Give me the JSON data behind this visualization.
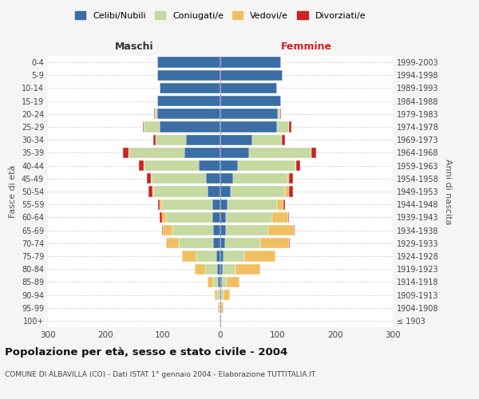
{
  "age_groups": [
    "100+",
    "95-99",
    "90-94",
    "85-89",
    "80-84",
    "75-79",
    "70-74",
    "65-69",
    "60-64",
    "55-59",
    "50-54",
    "45-49",
    "40-44",
    "35-39",
    "30-34",
    "25-29",
    "20-24",
    "15-19",
    "10-14",
    "5-9",
    "0-4"
  ],
  "birth_years": [
    "≤ 1903",
    "1904-1908",
    "1909-1913",
    "1914-1918",
    "1919-1923",
    "1924-1928",
    "1929-1933",
    "1934-1938",
    "1939-1943",
    "1944-1948",
    "1949-1953",
    "1954-1958",
    "1959-1963",
    "1964-1968",
    "1969-1973",
    "1974-1978",
    "1979-1983",
    "1984-1988",
    "1989-1993",
    "1994-1998",
    "1999-2003"
  ],
  "colors": {
    "celibi": "#3a6ea5",
    "coniugati": "#c5d9a0",
    "vedovi": "#f0c060",
    "divorziati": "#cc2222"
  },
  "males_celibi": [
    1,
    1,
    2,
    4,
    5,
    7,
    12,
    12,
    14,
    14,
    22,
    25,
    38,
    62,
    60,
    105,
    110,
    110,
    105,
    110,
    110
  ],
  "males_coniugati": [
    0,
    1,
    3,
    8,
    22,
    35,
    60,
    72,
    80,
    88,
    95,
    95,
    95,
    98,
    52,
    28,
    4,
    0,
    0,
    0,
    0
  ],
  "males_vedovi": [
    0,
    2,
    5,
    10,
    18,
    25,
    22,
    16,
    8,
    3,
    1,
    1,
    1,
    0,
    0,
    0,
    0,
    0,
    0,
    0,
    0
  ],
  "males_divorziati": [
    0,
    0,
    0,
    0,
    0,
    0,
    0,
    2,
    4,
    3,
    7,
    7,
    7,
    9,
    4,
    2,
    1,
    0,
    0,
    0,
    0
  ],
  "females_celibi": [
    1,
    1,
    2,
    3,
    4,
    5,
    8,
    10,
    10,
    13,
    18,
    22,
    30,
    50,
    55,
    98,
    100,
    105,
    98,
    108,
    106
  ],
  "females_coniugati": [
    0,
    1,
    4,
    8,
    22,
    36,
    62,
    74,
    80,
    85,
    95,
    95,
    100,
    108,
    52,
    22,
    4,
    0,
    0,
    0,
    0
  ],
  "females_vedovi": [
    1,
    4,
    10,
    22,
    44,
    55,
    50,
    44,
    28,
    12,
    6,
    3,
    2,
    0,
    0,
    0,
    0,
    0,
    0,
    0,
    0
  ],
  "females_divorziati": [
    0,
    0,
    0,
    0,
    0,
    0,
    1,
    1,
    2,
    3,
    7,
    7,
    7,
    9,
    6,
    4,
    1,
    0,
    0,
    0,
    0
  ],
  "title": "Popolazione per età, sesso e stato civile - 2004",
  "subtitle": "COMUNE DI ALBAVILLA (CO) - Dati ISTAT 1° gennaio 2004 - Elaborazione TUTTITALIA.IT",
  "xlabel_left": "Maschi",
  "xlabel_right": "Femmine",
  "ylabel_left": "Fasce di età",
  "ylabel_right": "Anni di nascita",
  "xlim": 300,
  "legend_labels": [
    "Celibi/Nubili",
    "Coniugati/e",
    "Vedovi/e",
    "Divorziati/e"
  ],
  "bg_color": "#f5f5f5",
  "plot_bg": "#ffffff",
  "grid_color": "#cccccc"
}
